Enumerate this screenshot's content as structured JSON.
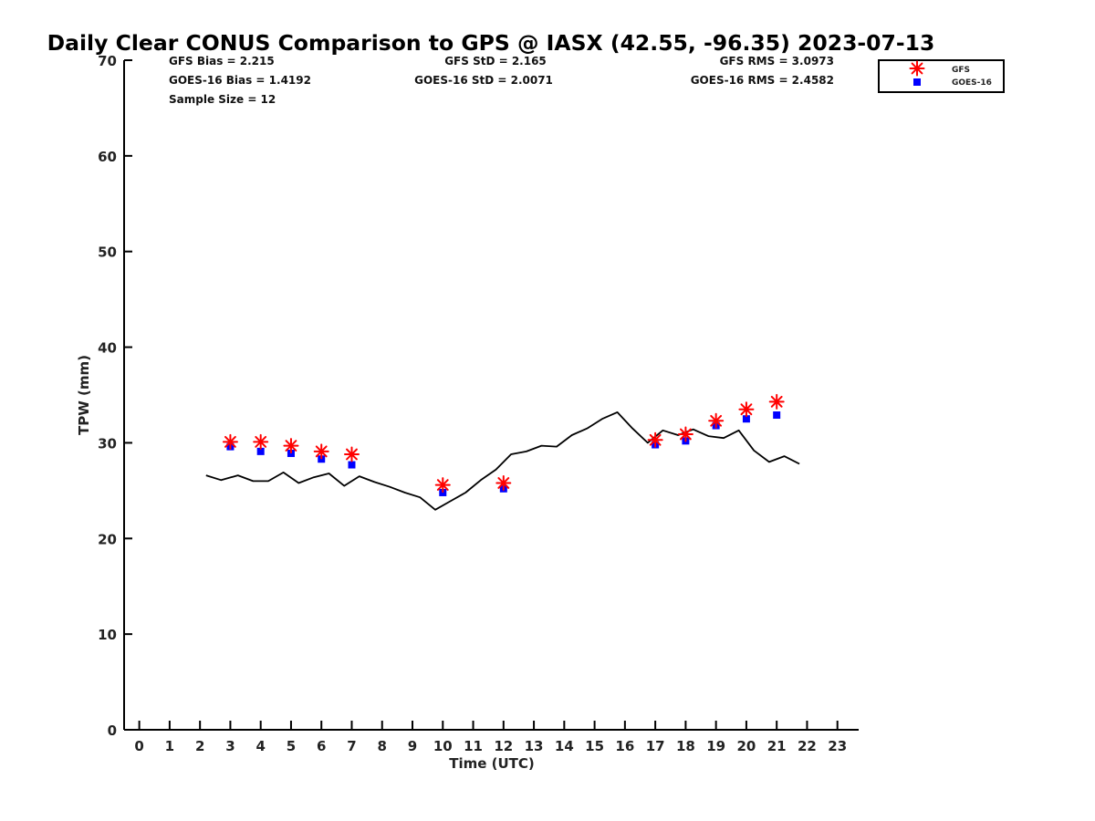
{
  "chart_data": {
    "type": "line+scatter",
    "title": "Daily Clear CONUS Comparison to GPS @ IASX (42.55, -96.35) 2023-07-13",
    "xlabel": "Time (UTC)",
    "ylabel": "TPW (mm)",
    "xlim": [
      -0.5,
      23.7
    ],
    "ylim": [
      0,
      70
    ],
    "xticks": [
      "0",
      "1",
      "2",
      "3",
      "4",
      "5",
      "6",
      "7",
      "8",
      "9",
      "10",
      "11",
      "12",
      "13",
      "14",
      "15",
      "16",
      "17",
      "18",
      "19",
      "20",
      "21",
      "22",
      "23"
    ],
    "yticks": [
      "0",
      "10",
      "20",
      "30",
      "40",
      "50",
      "60",
      "70"
    ],
    "stats": {
      "gfs_bias": "GFS Bias = 2.215",
      "goes_bias": "GOES-16 Bias = 1.4192",
      "sample_size": "Sample Size = 12",
      "gfs_std": "GFS StD = 2.165",
      "goes_std": "GOES-16 StD = 2.0071",
      "gfs_rms": "GFS RMS = 3.0973",
      "goes_rms": "GOES-16 RMS = 2.4582"
    },
    "legend": {
      "placement": "top-right",
      "entries": [
        "GFS",
        "GOES-16"
      ]
    },
    "series": [
      {
        "name": "GPS",
        "style": "line",
        "color": "#000000",
        "x": [
          2.2,
          2.7,
          3.25,
          3.75,
          4.25,
          4.75,
          5.25,
          5.75,
          6.25,
          6.75,
          7.25,
          7.75,
          8.25,
          8.75,
          9.25,
          9.75,
          10.25,
          10.75,
          11.25,
          11.75,
          12.25,
          12.75,
          13.25,
          13.75,
          14.25,
          14.75,
          15.25,
          15.75,
          16.25,
          16.75,
          17.25,
          17.75,
          18.25,
          18.75,
          19.25,
          19.75,
          20.25,
          20.75,
          21.25,
          21.75
        ],
        "y": [
          26.6,
          26.1,
          26.6,
          26.0,
          26.0,
          26.9,
          25.8,
          26.4,
          26.8,
          25.5,
          26.5,
          25.9,
          25.4,
          24.8,
          24.3,
          23.0,
          23.9,
          24.8,
          26.1,
          27.2,
          28.8,
          29.1,
          29.7,
          29.6,
          30.8,
          31.5,
          32.5,
          33.2,
          31.5,
          30.0,
          31.3,
          30.8,
          31.4,
          30.7,
          30.5,
          31.3,
          29.2,
          28.0,
          28.6,
          27.8
        ]
      },
      {
        "name": "GFS",
        "style": "asterisk",
        "color": "#ff0000",
        "x": [
          3,
          4,
          5,
          6,
          7,
          10,
          12,
          17,
          18,
          19,
          20,
          21
        ],
        "y": [
          30.1,
          30.1,
          29.7,
          29.1,
          28.8,
          25.6,
          25.8,
          30.3,
          30.9,
          32.3,
          33.5,
          34.3
        ]
      },
      {
        "name": "GOES-16",
        "style": "square",
        "color": "#0000ff",
        "x": [
          3,
          4,
          5,
          6,
          7,
          10,
          12,
          17,
          18,
          19,
          20,
          21
        ],
        "y": [
          29.6,
          29.1,
          28.9,
          28.3,
          27.7,
          24.8,
          25.2,
          29.8,
          30.2,
          31.8,
          32.5,
          32.9
        ]
      }
    ]
  }
}
